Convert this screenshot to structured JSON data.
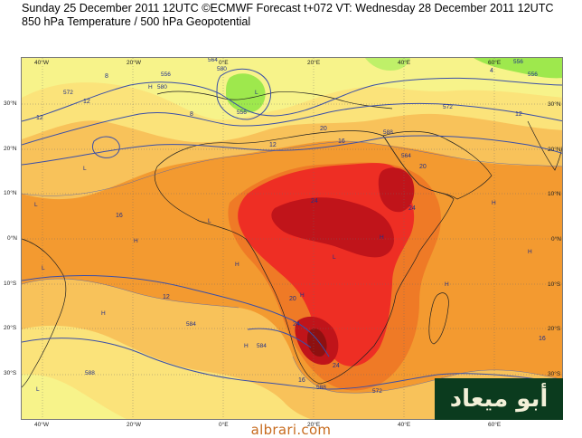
{
  "header": {
    "line1": "Sunday 25 December 2011 12UTC ©ECMWF Forecast t+072 VT: Wednesday 28 December 2011 12UTC",
    "line2": "850 hPa Temperature / 500 hPa Geopotential"
  },
  "axes": {
    "bottom_lon_labels": [
      "40°W",
      "20°W",
      "0°E",
      "20°E",
      "40°E",
      "60°E"
    ],
    "top_lon_labels": [
      "40°W",
      "20°W",
      "0°E",
      "20°E",
      "40°E",
      "60°E"
    ],
    "lat_labels": [
      "30°N",
      "20°N",
      "10°N",
      "0°N",
      "10°S",
      "20°S",
      "30°S"
    ]
  },
  "contour_labels": {
    "temperature": [
      "8",
      "12",
      "12",
      "16",
      "16",
      "16",
      "20",
      "20",
      "24",
      "24",
      "24",
      "24",
      "12",
      "16",
      "20",
      "12",
      "12",
      "8",
      "4"
    ],
    "geopotential": [
      "556",
      "556",
      "556",
      "588",
      "588",
      "588",
      "580",
      "572",
      "572",
      "572",
      "564",
      "556",
      "580",
      "584",
      "584",
      "564"
    ]
  },
  "pressure_markers": [
    "L",
    "L",
    "L",
    "L",
    "L",
    "H",
    "H",
    "H",
    "H",
    "H",
    "H",
    "H",
    "H",
    "H",
    "L",
    "L",
    "H"
  ],
  "colors": {
    "cool_yellow": "#f7f38a",
    "pale_yellow": "#fbe37a",
    "light_orange": "#f8c25a",
    "orange": "#f39a30",
    "dark_orange": "#ef7a26",
    "red": "#ee2e24",
    "dark_red": "#c0141a",
    "deep_red": "#8e1010",
    "green_cold": "#9ee84d",
    "contour_blue": "#3a4fa8",
    "coast_black": "#222222"
  },
  "watermark_text": "أبو ميعاد",
  "footer_brand": "albrari.com"
}
